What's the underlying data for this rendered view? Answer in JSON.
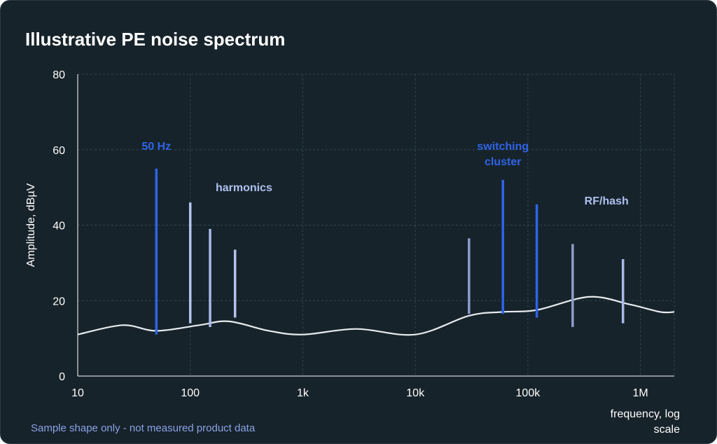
{
  "title": "Illustrative PE noise spectrum",
  "footnote": "Sample shape only - not measured product data",
  "chart_data": {
    "type": "line",
    "ylabel": "Amplitude, dBµV",
    "xlabel_line1": "frequency, log",
    "xlabel_line2": "scale",
    "x_scale": "log",
    "xlim": [
      10,
      2000000
    ],
    "ylim": [
      0,
      80
    ],
    "grid": true,
    "x_ticks": [
      {
        "value": 10,
        "label": "10"
      },
      {
        "value": 100,
        "label": "100"
      },
      {
        "value": 1000,
        "label": "1k"
      },
      {
        "value": 10000,
        "label": "10k"
      },
      {
        "value": 100000,
        "label": "100k"
      },
      {
        "value": 1000000,
        "label": "1M"
      }
    ],
    "y_ticks": [
      0,
      20,
      40,
      60,
      80
    ],
    "noise_floor": {
      "x": [
        10,
        25,
        50,
        120,
        220,
        500,
        1000,
        3000,
        10000,
        30000,
        60000,
        120000,
        350000,
        800000,
        1500000,
        2000000
      ],
      "y": [
        11,
        13.5,
        12,
        13.5,
        14.5,
        12,
        11,
        12.5,
        11,
        16,
        17,
        17.5,
        21,
        19,
        17,
        17
      ]
    },
    "spikes": [
      {
        "x": 50,
        "y_low": 11,
        "y_high": 55,
        "color": "#2f64e8"
      },
      {
        "x": 100,
        "y_low": 14,
        "y_high": 46,
        "color": "#b5c4ee"
      },
      {
        "x": 150,
        "y_low": 13,
        "y_high": 39,
        "color": "#aab9ea"
      },
      {
        "x": 250,
        "y_low": 15.5,
        "y_high": 33.5,
        "color": "#b5c4ee"
      },
      {
        "x": 30000,
        "y_low": 16.5,
        "y_high": 36.5,
        "color": "#8e9dc8"
      },
      {
        "x": 60000,
        "y_low": 16.5,
        "y_high": 52,
        "color": "#2f64e8"
      },
      {
        "x": 120000,
        "y_low": 15.5,
        "y_high": 45.5,
        "color": "#2f64e8"
      },
      {
        "x": 250000,
        "y_low": 13,
        "y_high": 35,
        "color": "#8e9dc8"
      },
      {
        "x": 700000,
        "y_low": 14,
        "y_high": 31,
        "color": "#aab9ea"
      }
    ],
    "annotations": [
      {
        "lines": [
          "50 Hz"
        ],
        "x": 50,
        "y": 60,
        "color": "#2f64e8"
      },
      {
        "lines": [
          "harmonics"
        ],
        "x": 300,
        "y": 49,
        "color": "#aec0ef"
      },
      {
        "lines": [
          "switching",
          "cluster"
        ],
        "x": 60000,
        "y": 60,
        "color": "#2f64e8"
      },
      {
        "lines": [
          "RF/hash"
        ],
        "x": 500000,
        "y": 45.5,
        "color": "#aec0ef"
      }
    ],
    "colors": {
      "background": "#17232b",
      "grid": "#2e4650",
      "curve": "#e6ecf0",
      "tick_text": "#ffffff"
    }
  }
}
